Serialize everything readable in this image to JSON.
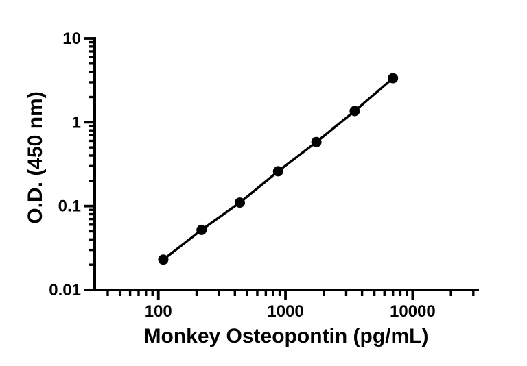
{
  "page": {
    "background_color": "#ffffff",
    "foreground_color": "#000000"
  },
  "chart_data": {
    "type": "line",
    "title": "",
    "xlabel": "Monkey Osteopontin (pg/mL)",
    "ylabel": "O.D. (450 nm)",
    "xscale": "log",
    "yscale": "log",
    "xlim": [
      31.6,
      32400
    ],
    "ylim": [
      0.01,
      10
    ],
    "grid": false,
    "legend": "none",
    "x_ticks": [
      {
        "value": 100,
        "label": "100"
      },
      {
        "value": 1000,
        "label": "1000"
      },
      {
        "value": 10000,
        "label": "10000"
      }
    ],
    "y_ticks": [
      {
        "value": 10,
        "label": "10"
      },
      {
        "value": 1,
        "label": "1"
      },
      {
        "value": 0.1,
        "label": "0.1"
      },
      {
        "value": 0.01,
        "label": "0.01"
      }
    ],
    "series": [
      {
        "name": "standard-curve",
        "marker": "filled-circle",
        "color": "#000000",
        "points": [
          {
            "x": 109.4,
            "y": 0.023
          },
          {
            "x": 218.8,
            "y": 0.052
          },
          {
            "x": 437.5,
            "y": 0.11
          },
          {
            "x": 875,
            "y": 0.26
          },
          {
            "x": 1750,
            "y": 0.58
          },
          {
            "x": 3500,
            "y": 1.36
          },
          {
            "x": 7000,
            "y": 3.35
          }
        ]
      }
    ]
  }
}
